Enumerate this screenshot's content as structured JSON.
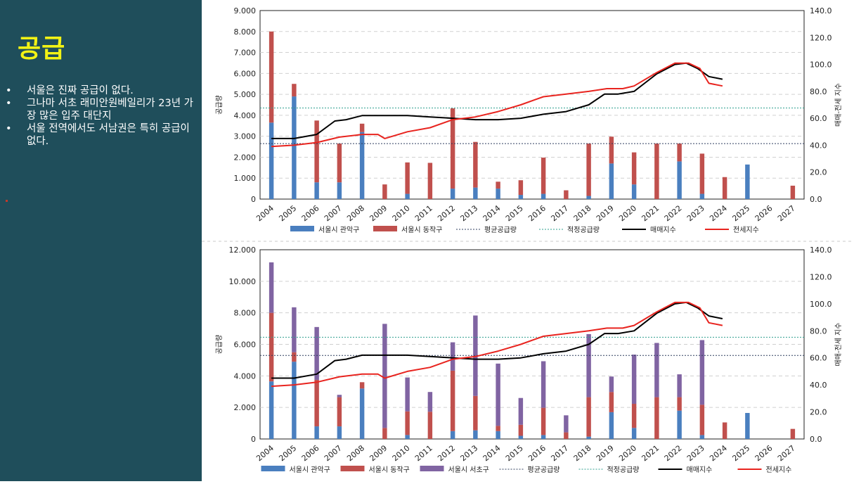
{
  "sidebar": {
    "title": "공급",
    "bullets": [
      "서울은 진짜 공급이 없다.",
      "그나마 서초 래미안원베일리가 23년 가장 많은 입주 대단지",
      "서울 전역에서도 서남권은 특히 공급이 없다."
    ]
  },
  "colors": {
    "sidebar_bg": "#1f4e5b",
    "title": "#f2f215",
    "gwanak": "#4a7fbf",
    "dongjak": "#c0504d",
    "seocho": "#8064a2",
    "avg_supply": "#2f3f5f",
    "proper_supply": "#2e9f8f",
    "sale_index": "#000000",
    "jeonse_index": "#e8241f"
  },
  "chart_data": [
    {
      "type": "bar",
      "stacked": true,
      "categories": [
        "2004",
        "2005",
        "2006",
        "2007",
        "2008",
        "2009",
        "2010",
        "2011",
        "2012",
        "2013",
        "2014",
        "2015",
        "2016",
        "2017",
        "2018",
        "2019",
        "2020",
        "2021",
        "2022",
        "2023",
        "2024",
        "2025",
        "2026",
        "2027"
      ],
      "series": [
        {
          "name": "서울시 관악구",
          "color": "#4a7fbf",
          "values": [
            3650,
            4900,
            800,
            800,
            3200,
            0,
            250,
            0,
            500,
            550,
            500,
            200,
            250,
            0,
            150,
            1700,
            700,
            0,
            1800,
            250,
            0,
            1650,
            0,
            0
          ]
        },
        {
          "name": "서울시 동작구",
          "color": "#c0504d",
          "values": [
            4350,
            600,
            2950,
            1850,
            400,
            700,
            1500,
            1730,
            3830,
            2180,
            330,
            700,
            1730,
            420,
            2500,
            1280,
            1530,
            2650,
            850,
            1920,
            1050,
            0,
            0,
            640
          ]
        }
      ],
      "lines": [
        {
          "name": "평균공급량",
          "style": "dotted",
          "axis": "left",
          "value": 2650,
          "color": "#2f3f5f"
        },
        {
          "name": "적정공급량",
          "style": "dotted",
          "axis": "left",
          "value": 4350,
          "color": "#2e9f8f"
        },
        {
          "name": "매매지수",
          "axis": "right",
          "color": "#000000",
          "x": [
            2004,
            2005,
            2006,
            2006.8,
            2007.3,
            2008,
            2008.7,
            2009.3,
            2010,
            2011,
            2012,
            2013,
            2014,
            2015,
            2016,
            2017,
            2018,
            2018.7,
            2019.3,
            2020,
            2021,
            2021.8,
            2022.3,
            2022.8,
            2023.3,
            2023.9
          ],
          "y": [
            45,
            45,
            48,
            58,
            59,
            62,
            62,
            62,
            62,
            61,
            60,
            59,
            59,
            60,
            63,
            65,
            70,
            78,
            78,
            80,
            93,
            100,
            101,
            97,
            91,
            89
          ]
        },
        {
          "name": "전세지수",
          "axis": "right",
          "color": "#e8241f",
          "x": [
            2004,
            2005,
            2006,
            2007,
            2008,
            2008.7,
            2009,
            2010,
            2011,
            2012,
            2013,
            2014,
            2015,
            2016,
            2017,
            2018,
            2018.8,
            2019.5,
            2020,
            2021,
            2021.8,
            2022.4,
            2022.9,
            2023.3,
            2023.9
          ],
          "y": [
            39,
            40,
            42,
            46,
            48,
            48,
            45,
            50,
            53,
            59,
            61,
            65,
            70,
            76,
            78,
            80,
            82,
            82,
            84,
            94,
            101,
            101,
            97,
            86,
            84
          ]
        }
      ],
      "y_left": {
        "label": "공급량",
        "min": 0,
        "max": 9000,
        "ticks": [
          "0",
          "1.000",
          "2.000",
          "3.000",
          "4.000",
          "5.000",
          "6.000",
          "7.000",
          "8.000",
          "9.000"
        ]
      },
      "y_right": {
        "label": "매매-전세 지수",
        "min": 0,
        "max": 140,
        "ticks": [
          "0.0",
          "20.0",
          "40.0",
          "60.0",
          "80.0",
          "100.0",
          "120.0",
          "140.0"
        ]
      },
      "legend": [
        "서울시 관악구",
        "서울시 동작구",
        "평균공급량",
        "적정공급량",
        "매매지수",
        "전세지수"
      ],
      "grid": true,
      "legend_position": "bottom"
    },
    {
      "type": "bar",
      "stacked": true,
      "categories": [
        "2004",
        "2005",
        "2006",
        "2007",
        "2008",
        "2009",
        "2010",
        "2011",
        "2012",
        "2013",
        "2014",
        "2015",
        "2016",
        "2017",
        "2018",
        "2019",
        "2020",
        "2021",
        "2022",
        "2023",
        "2024",
        "2025",
        "2026",
        "2027"
      ],
      "series": [
        {
          "name": "서울시 관악구",
          "color": "#4a7fbf",
          "values": [
            3650,
            4900,
            800,
            800,
            3200,
            0,
            250,
            0,
            500,
            550,
            500,
            200,
            250,
            0,
            150,
            1700,
            700,
            0,
            1800,
            250,
            0,
            1650,
            0,
            0
          ]
        },
        {
          "name": "서울시 동작구",
          "color": "#c0504d",
          "values": [
            4350,
            600,
            2950,
            1850,
            400,
            700,
            1500,
            1730,
            3830,
            2180,
            330,
            700,
            1730,
            420,
            2500,
            1280,
            1530,
            2650,
            850,
            1920,
            1050,
            0,
            0,
            640
          ]
        },
        {
          "name": "서울시 서초구",
          "color": "#8064a2",
          "values": [
            3200,
            2850,
            3350,
            150,
            0,
            6600,
            2150,
            1250,
            1800,
            5100,
            3950,
            1700,
            2950,
            1080,
            4000,
            980,
            3120,
            3440,
            1450,
            4100,
            0,
            0,
            0,
            0
          ]
        }
      ],
      "lines": [
        {
          "name": "평균공급량",
          "style": "dotted",
          "axis": "left",
          "value": 5300,
          "color": "#2f3f5f"
        },
        {
          "name": "적정공급량",
          "style": "dotted",
          "axis": "left",
          "value": 6450,
          "color": "#2e9f8f"
        },
        {
          "name": "매매지수",
          "axis": "right",
          "color": "#000000",
          "x": [
            2004,
            2005,
            2006,
            2006.8,
            2007.3,
            2008,
            2008.7,
            2009.3,
            2010,
            2011,
            2012,
            2013,
            2014,
            2015,
            2016,
            2017,
            2018,
            2018.7,
            2019.3,
            2020,
            2021,
            2021.8,
            2022.3,
            2022.8,
            2023.3,
            2023.9
          ],
          "y": [
            45,
            45,
            48,
            58,
            59,
            62,
            62,
            62,
            62,
            61,
            60,
            59,
            59,
            60,
            63,
            65,
            70,
            78,
            78,
            80,
            93,
            100,
            101,
            97,
            91,
            89
          ]
        },
        {
          "name": "전세지수",
          "axis": "right",
          "color": "#e8241f",
          "x": [
            2004,
            2005,
            2006,
            2007,
            2008,
            2008.7,
            2009,
            2010,
            2011,
            2012,
            2013,
            2014,
            2015,
            2016,
            2017,
            2018,
            2018.8,
            2019.5,
            2020,
            2021,
            2021.8,
            2022.4,
            2022.9,
            2023.3,
            2023.9
          ],
          "y": [
            39,
            40,
            42,
            46,
            48,
            48,
            45,
            50,
            53,
            59,
            61,
            65,
            70,
            76,
            78,
            80,
            82,
            82,
            84,
            94,
            101,
            101,
            97,
            86,
            84
          ]
        }
      ],
      "y_left": {
        "label": "공급량",
        "min": 0,
        "max": 12000,
        "ticks": [
          "0",
          "2.000",
          "4.000",
          "6.000",
          "8.000",
          "10.000",
          "12.000"
        ]
      },
      "y_right": {
        "label": "매매-전세 지수",
        "min": 0,
        "max": 140,
        "ticks": [
          "0.0",
          "20.0",
          "40.0",
          "60.0",
          "80.0",
          "100.0",
          "120.0",
          "140.0"
        ]
      },
      "legend": [
        "서울시 관악구",
        "서울시 동작구",
        "서울시 서초구",
        "평균공급량",
        "적정공급량",
        "매매지수",
        "전세지수"
      ],
      "grid": true,
      "legend_position": "bottom"
    }
  ]
}
